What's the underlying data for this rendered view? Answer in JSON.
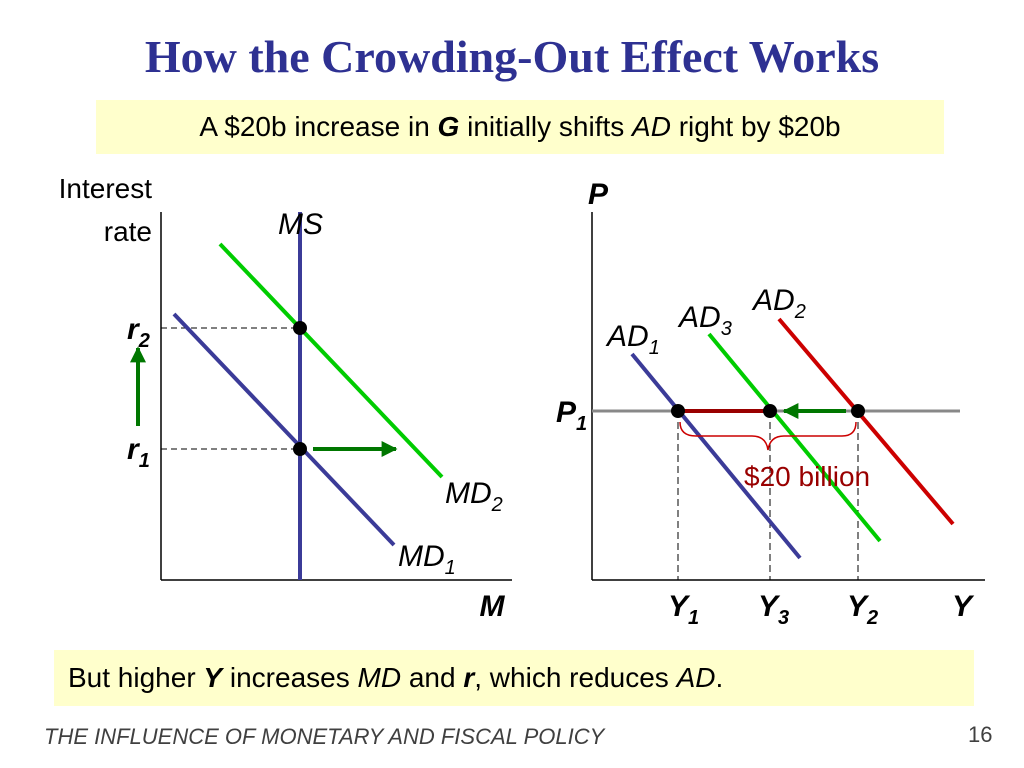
{
  "title": "How the Crowding-Out Effect Works",
  "top_box": {
    "t1": "A $20b increase in ",
    "t2": "G",
    "t3": " initially shifts ",
    "t4": "AD",
    "t5": " right by $20b"
  },
  "bottom_box": {
    "t1": "But higher ",
    "t2": "Y",
    "t3": " increases ",
    "t4": "MD",
    "t5": " and ",
    "t6": "r",
    "t7": ", which reduces ",
    "t8": "AD",
    "t9": "."
  },
  "footer": "THE INFLUENCE OF MONETARY AND FISCAL POLICY",
  "page_number": "16",
  "money_market": {
    "y_axis_label_line1": "Interest",
    "y_axis_label_line2": "rate",
    "x_axis_label": "M",
    "ms_label": "MS",
    "md1": {
      "base": "MD",
      "sub": "1"
    },
    "md2": {
      "base": "MD",
      "sub": "2"
    },
    "r1": {
      "base": "r",
      "sub": "1"
    },
    "r2": {
      "base": "r",
      "sub": "2"
    }
  },
  "ad_market": {
    "y_axis_label": "P",
    "x_axis_label": "Y",
    "p1": {
      "base": "P",
      "sub": "1"
    },
    "ad1": {
      "base": "AD",
      "sub": "1"
    },
    "ad2": {
      "base": "AD",
      "sub": "2"
    },
    "ad3": {
      "base": "AD",
      "sub": "3"
    },
    "y1": {
      "base": "Y",
      "sub": "1"
    },
    "y2": {
      "base": "Y",
      "sub": "2"
    },
    "y3": {
      "base": "Y",
      "sub": "3"
    },
    "shift_label": "$20 billion"
  },
  "colors": {
    "title": "#2e3192",
    "box_fill": "#ffffcc",
    "md1": "#3b3b98",
    "ms": "#3b3b98",
    "md2": "#00cc00",
    "ad1": "#3b3b98",
    "ad3": "#00cc00",
    "ad2": "#cc0000",
    "arrows_green": "#007700",
    "shift_bar": "#990000",
    "shift_label": "#990000",
    "brace": "#cc0000",
    "p1_line": "#888888"
  }
}
